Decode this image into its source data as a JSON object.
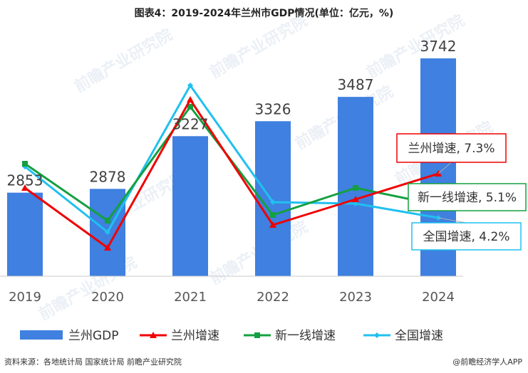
{
  "title": "图表4：2019-2024年兰州市GDP情况(单位：亿元，%)",
  "footer": {
    "source": "资料来源：各地统计局 国家统计局 前瞻产业研究院",
    "brand": "@前瞻经济学人APP"
  },
  "watermark": "前瞻产业研究院",
  "colors": {
    "bar": "#3f80e0",
    "lanzhou": "#f00000",
    "tier1": "#14a040",
    "national": "#20c0f0",
    "axis": "#c8c8c8"
  },
  "chart_data": {
    "type": "bar",
    "categories": [
      "2019",
      "2020",
      "2021",
      "2022",
      "2023",
      "2024"
    ],
    "series": [
      {
        "name": "兰州GDP",
        "kind": "bar",
        "values": [
          2853,
          2878,
          3227,
          3326,
          3487,
          3742
        ]
      },
      {
        "name": "兰州增速",
        "kind": "line",
        "values": [
          6.3,
          2.1,
          12.5,
          3.7,
          5.5,
          7.3
        ]
      },
      {
        "name": "新一线增速",
        "kind": "line",
        "values": [
          8.0,
          4.0,
          12.0,
          4.4,
          6.3,
          5.1
        ]
      },
      {
        "name": "全国增速",
        "kind": "line",
        "values": [
          7.8,
          3.2,
          13.5,
          5.3,
          5.2,
          4.2
        ]
      }
    ],
    "annotations": [
      {
        "series": "兰州增速",
        "text": "兰州增速, 7.3%"
      },
      {
        "series": "新一线增速",
        "text": "新一线增速, 5.1%"
      },
      {
        "series": "全国增速",
        "text": "全国增速, 4.2%"
      }
    ],
    "legend_position": "bottom",
    "grid": false
  }
}
